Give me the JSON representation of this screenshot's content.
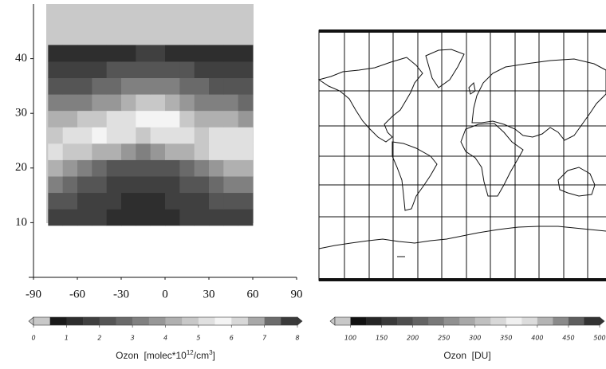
{
  "chart_data": [
    {
      "type": "contour",
      "xlim": [
        -90,
        90
      ],
      "xticks": [
        -90,
        -60,
        -30,
        0,
        30,
        60,
        90
      ],
      "ylim": [
        0,
        50
      ],
      "yticks": [
        10,
        20,
        30,
        40
      ],
      "x": [
        -75,
        -65,
        -55,
        -45,
        -35,
        -25,
        -15,
        -5,
        5,
        15,
        25,
        35,
        45,
        55
      ],
      "y": [
        11,
        14,
        17,
        20,
        23,
        26,
        29,
        32,
        35,
        38,
        41
      ],
      "field": [
        [
          1.8,
          1.7,
          1.6,
          1.5,
          1.4,
          1.3,
          1.3,
          1.3,
          1.4,
          1.5,
          1.6,
          1.7,
          1.8,
          1.9
        ],
        [
          2.2,
          2.0,
          1.8,
          1.6,
          1.5,
          1.4,
          1.4,
          1.4,
          1.5,
          1.6,
          1.8,
          2.0,
          2.2,
          2.3
        ],
        [
          3.0,
          2.7,
          2.3,
          2.0,
          1.8,
          1.6,
          1.5,
          1.6,
          1.8,
          2.0,
          2.3,
          2.7,
          3.0,
          3.1
        ],
        [
          4.2,
          3.8,
          3.3,
          2.8,
          2.4,
          2.1,
          2.0,
          2.1,
          2.4,
          2.8,
          3.3,
          3.8,
          4.2,
          4.3
        ],
        [
          5.2,
          4.8,
          4.5,
          4.3,
          4.0,
          3.6,
          3.4,
          3.6,
          4.0,
          4.3,
          4.6,
          5.0,
          5.4,
          5.3
        ],
        [
          4.8,
          5.0,
          5.3,
          5.6,
          5.4,
          5.0,
          4.8,
          5.0,
          5.2,
          5.0,
          4.8,
          5.0,
          5.2,
          5.0
        ],
        [
          4.0,
          4.2,
          4.5,
          4.8,
          5.0,
          5.2,
          5.5,
          5.8,
          5.6,
          4.8,
          4.4,
          4.2,
          4.0,
          3.9
        ],
        [
          3.0,
          3.2,
          3.4,
          3.6,
          3.8,
          4.2,
          4.6,
          4.8,
          4.4,
          3.8,
          3.4,
          3.2,
          3.0,
          2.9
        ],
        [
          2.2,
          2.3,
          2.4,
          2.6,
          2.8,
          3.0,
          3.2,
          3.4,
          3.2,
          2.8,
          2.5,
          2.3,
          2.2,
          2.1
        ],
        [
          1.6,
          1.7,
          1.8,
          1.9,
          2.0,
          2.1,
          2.2,
          2.3,
          2.2,
          2.0,
          1.9,
          1.8,
          1.7,
          1.6
        ],
        [
          1.2,
          1.2,
          1.3,
          1.3,
          1.4,
          1.4,
          1.5,
          1.5,
          1.4,
          1.3,
          1.3,
          1.2,
          1.2,
          1.1
        ]
      ],
      "colorbar": {
        "lim": [
          0,
          8
        ],
        "ticks": [
          0,
          1,
          2,
          3,
          4,
          5,
          6,
          7,
          8
        ],
        "label": [
          "Ozon  [molec*10",
          "12",
          "/cm",
          "3",
          "]"
        ],
        "colors": [
          "#c8c8c8",
          "#1a1a1a",
          "#2e2e2e",
          "#404040",
          "#555555",
          "#6a6a6a",
          "#808080",
          "#979797",
          "#b0b0b0",
          "#c8c8c8",
          "#e0e0e0",
          "#f4f4f4",
          "#d8d8d8",
          "#a8a8a8",
          "#6c6c6c",
          "#3a3a3a"
        ]
      }
    },
    {
      "type": "map",
      "colorbar": {
        "lim": [
          75,
          500
        ],
        "ticks": [
          100,
          150,
          200,
          250,
          300,
          350,
          400,
          450,
          500
        ],
        "label": [
          "Ozon  [DU]"
        ],
        "colors": [
          "#c8c8c8",
          "#111111",
          "#262626",
          "#3a3a3a",
          "#4e4e4e",
          "#636363",
          "#797979",
          "#909090",
          "#a8a8a8",
          "#c0c0c0",
          "#d8d8d8",
          "#f0f0f0",
          "#dcdcdc",
          "#b4b4b4",
          "#8a8a8a",
          "#5e5e5e",
          "#333333"
        ]
      }
    }
  ]
}
